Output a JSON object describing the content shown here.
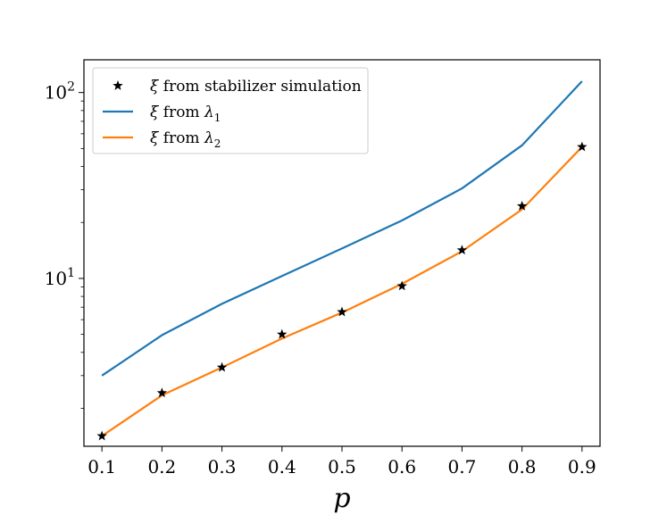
{
  "chart_data": {
    "type": "line",
    "xlabel": "p",
    "ylabel": "",
    "yscale": "log",
    "xlim": [
      0.07,
      0.93
    ],
    "ylim": [
      1.25,
      150
    ],
    "x_ticks": [
      "0.1",
      "0.2",
      "0.3",
      "0.4",
      "0.5",
      "0.6",
      "0.7",
      "0.8",
      "0.9"
    ],
    "y_ticks": [
      {
        "value": 10,
        "base": "10",
        "exp": "1"
      },
      {
        "value": 100,
        "base": "10",
        "exp": "2"
      }
    ],
    "legend_position": "top-left",
    "x": [
      0.1,
      0.2,
      0.3,
      0.4,
      0.5,
      0.6,
      0.7,
      0.8,
      0.9
    ],
    "series": [
      {
        "name": "ξ from stabilizer simulation",
        "legend_parts": {
          "sym": "ξ",
          "text": " from stabilizer simulation",
          "sub": ""
        },
        "kind": "scatter",
        "marker": "star",
        "color": "#000000",
        "values": [
          1.42,
          2.42,
          3.32,
          5.0,
          6.6,
          9.1,
          14.2,
          24.5,
          51.0
        ]
      },
      {
        "name": "ξ from λ1",
        "legend_parts": {
          "sym": "ξ",
          "text": " from ",
          "lambda": "λ",
          "sub": "1"
        },
        "kind": "line",
        "color": "#1f77b4",
        "values": [
          3.0,
          4.95,
          7.3,
          10.3,
          14.5,
          20.5,
          30.5,
          52.0,
          115.0
        ]
      },
      {
        "name": "ξ from λ2",
        "legend_parts": {
          "sym": "ξ",
          "text": " from ",
          "lambda": "λ",
          "sub": "2"
        },
        "kind": "line",
        "color": "#ff7f0e",
        "values": [
          1.42,
          2.35,
          3.32,
          4.75,
          6.55,
          9.35,
          14.0,
          23.5,
          51.0
        ]
      }
    ]
  }
}
